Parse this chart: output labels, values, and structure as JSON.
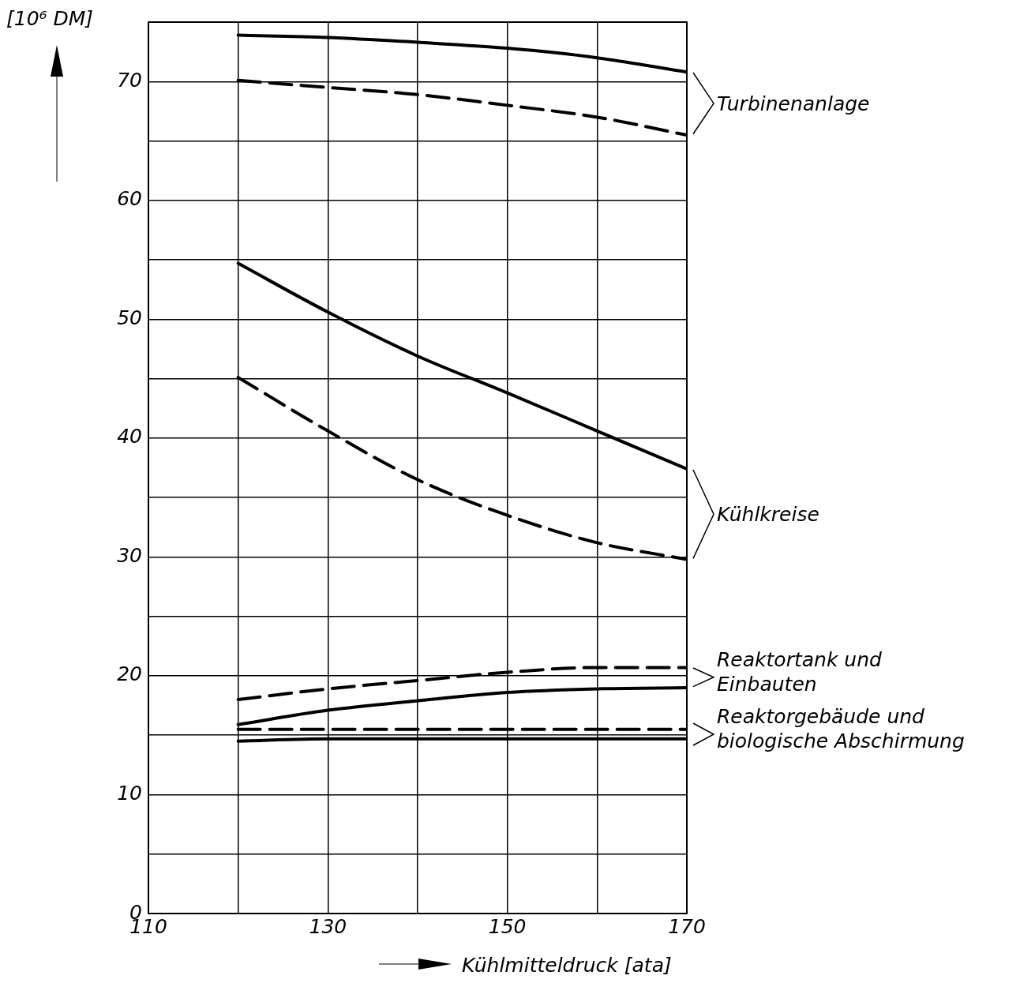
{
  "chart_data": {
    "type": "line",
    "xlabel": "Kühlmitteldruck [ata]",
    "ylabel": "[10⁶ DM]",
    "x": [
      120,
      130,
      140,
      150,
      160,
      170
    ],
    "series": [
      {
        "color": "#000000",
        "line_style": "solid",
        "values": [
          73.9,
          73.7,
          73.3,
          72.8,
          72.0,
          70.8
        ]
      },
      {
        "color": "#000000",
        "line_style": "dashed",
        "values": [
          70.1,
          69.5,
          68.9,
          68.0,
          67.0,
          65.5
        ]
      },
      {
        "color": "#000000",
        "line_style": "solid",
        "values": [
          54.7,
          50.6,
          46.9,
          43.8,
          40.6,
          37.4
        ]
      },
      {
        "color": "#000000",
        "line_style": "dashed",
        "values": [
          45.1,
          40.6,
          36.5,
          33.5,
          31.2,
          29.8
        ]
      },
      {
        "color": "#000000",
        "line_style": "dashed",
        "values": [
          18.0,
          18.9,
          19.6,
          20.3,
          20.7,
          20.7
        ]
      },
      {
        "color": "#000000",
        "line_style": "solid",
        "values": [
          15.9,
          17.1,
          17.9,
          18.6,
          18.9,
          19.0
        ]
      },
      {
        "color": "#000000",
        "line_style": "dashed",
        "values": [
          15.5,
          15.5,
          15.5,
          15.5,
          15.5,
          15.5
        ]
      },
      {
        "color": "#000000",
        "line_style": "solid",
        "values": [
          14.5,
          14.7,
          14.7,
          14.7,
          14.7,
          14.7
        ]
      }
    ],
    "xlim": [
      110,
      170
    ],
    "xticks": [
      110,
      {
        "value": 120,
        "label": null
      },
      130,
      {
        "value": 140,
        "label": null
      },
      150,
      {
        "value": 160,
        "label": null
      },
      170
    ],
    "ylim": [
      0,
      75
    ],
    "yticks": [
      0,
      {
        "value": 5,
        "label": null
      },
      10,
      {
        "value": 15,
        "label": null
      },
      20,
      {
        "value": 25,
        "label": null
      },
      30,
      {
        "value": 35,
        "label": null
      },
      40,
      {
        "value": 45,
        "label": null
      },
      50,
      {
        "value": 55,
        "label": null
      },
      60,
      {
        "value": 65,
        "label": null
      },
      70,
      {
        "value": 75,
        "label": null
      }
    ],
    "annotations": [
      "Turbinenanlage",
      "Kühlkreise",
      "Reaktortank und\nEinbauten",
      "Reaktorgebäude und\nbiologische Abschirmung"
    ],
    "grid": true,
    "legend": false,
    "marker": "none"
  }
}
